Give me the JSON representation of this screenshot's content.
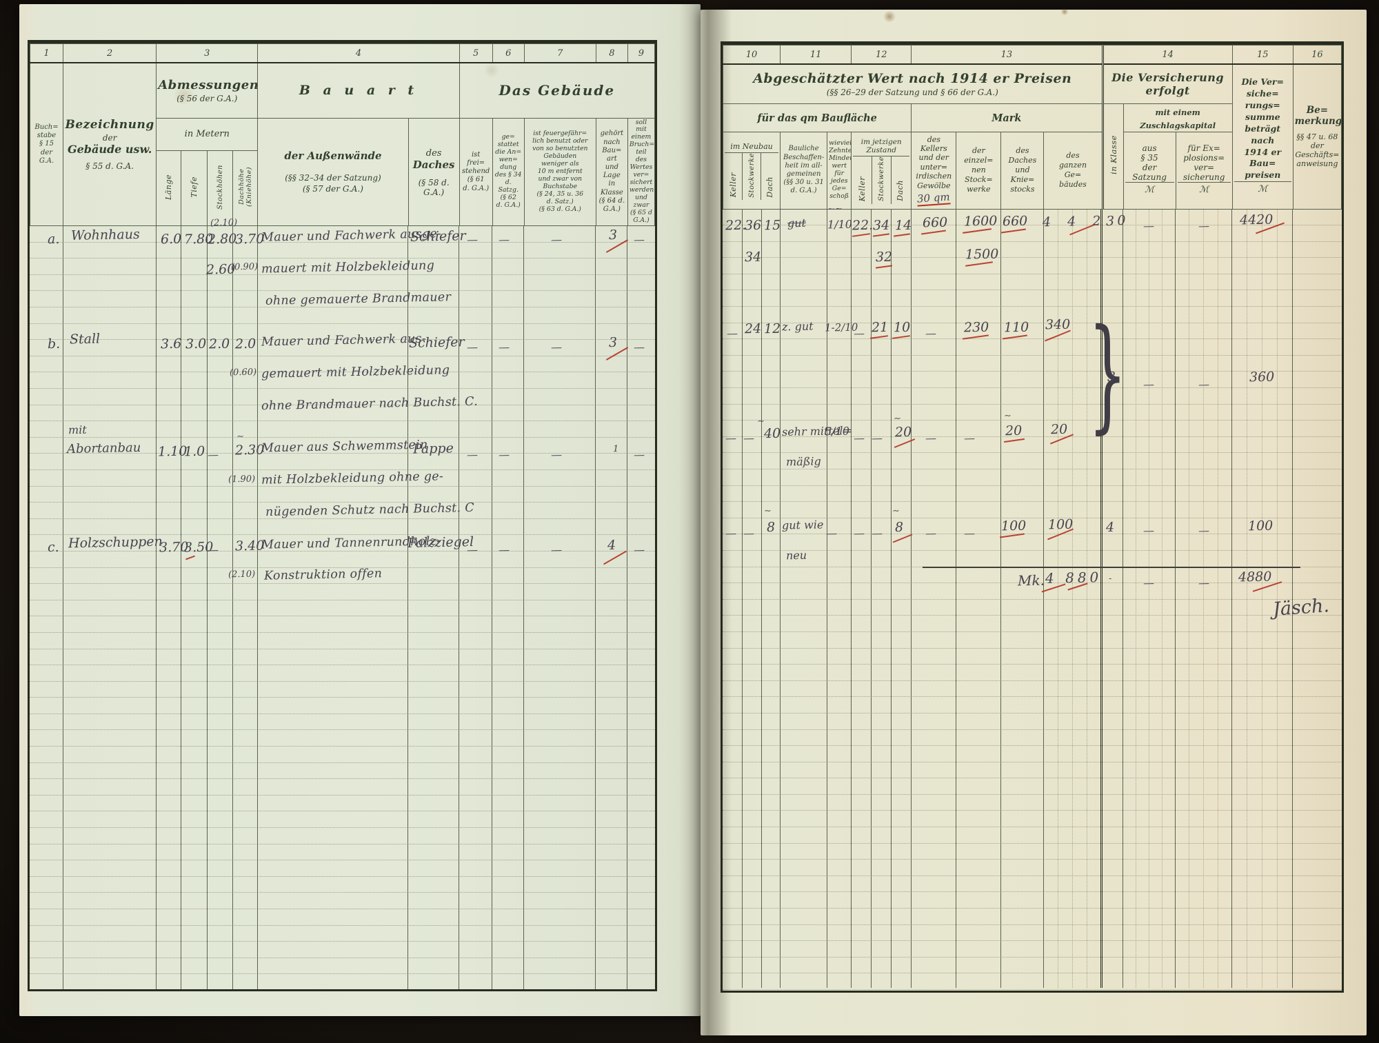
{
  "left": {
    "nums": [
      "1",
      "2",
      "3",
      "4",
      "5",
      "6",
      "7",
      "8",
      "9"
    ],
    "h": {
      "c1": "Buch=\nstabe\n§ 15\nder\nG.A.",
      "c2a": "Bezeichnung",
      "c2b": "der",
      "c2c": "Gebäude usw.",
      "c2d": "§ 55 d. G.A.",
      "abm": "Abmessungen",
      "abm_ref": "(§ 56 der G.A.)",
      "metern": "in Metern",
      "laenge": "Länge",
      "tiefe": "Tiefe",
      "stock": "Stockhöhen",
      "dach": "Dachhöhe\n(Kniehöhe)",
      "bauart": "B a u a r t",
      "gebaeude": "Das Gebäude",
      "wand_a": "der Außenwände",
      "wand_b": "(§§ 32–34 der Satzung)",
      "wand_c": "(§ 57 der G.A.)",
      "daches_a": "des",
      "daches_b": "Daches",
      "daches_c": "(§ 58 d. G.A.)",
      "c5": "ist\nfrei=\nstehend\n(§ 61\nd. G.A.)",
      "c6": "ge=\nstattet\ndie An=\nwen=\ndung\ndes § 34\nd. Satzg.\n(§ 62\nd. G.A.)",
      "c7": "ist feuergefähr=\nlich benutzt oder\nvon so benutzten\nGebäuden\nweniger als\n10 m entfernt\nund zwar von\nBuchstabe\n(§ 24, 35 u. 36\nd. Satz.)\n(§ 63 d. G.A.)",
      "c8": "gehört\nnach\nBau=\nart\nund\nLage\nin\nKlasse\n(§ 64 d.\nG.A.)",
      "c9": "soll mit\neinem\nBruch=\nteil des\nWertes\nver=\nsichert\nwerden\nund\nzwar\n(§ 65 d\nG.A.)"
    },
    "e": [
      "a.",
      "Wohnhaus",
      "6.0",
      "7.80",
      "(2.10)",
      "2.80",
      "2.60",
      "3.70",
      "(0.90)",
      "Mauer und Fachwerk ausge-",
      "mauert mit Holzbekleidung",
      "ohne gemauerte Brandmauer",
      "Schiefer",
      "—",
      "—",
      "—",
      "3",
      "—",
      "b.",
      "Stall",
      "3.6",
      "3.0",
      "2.0",
      "2.0",
      "(0.60)",
      "Mauer und Fachwerk aus-",
      "gemauert mit Holzbekleidung",
      "ohne Brandmauer nach Buchst. C.",
      "Schiefer",
      "—",
      "—",
      "—",
      "3",
      "—",
      "mit",
      "Abortanbau",
      "1.10",
      "1.0",
      "—",
      "2.30",
      "(1.90)",
      "Mauer aus Schwemmstein",
      "mit Holzbekleidung ohne ge-",
      "nügenden Schutz nach Buchst. C",
      "Pappe",
      "—",
      "—",
      "—",
      "1",
      "—",
      "c.",
      "Holzschuppen",
      "3.70",
      "3.50",
      "—",
      "3.40",
      "(2.10)",
      "Mauer und Tannenrundholz-",
      "Konstruktion offen",
      "Falzziegel",
      "—",
      "—",
      "—",
      "4",
      "—",
      "~"
    ]
  },
  "right": {
    "nums": [
      "10",
      "11",
      "12",
      "13",
      "14",
      "15",
      "16"
    ],
    "h": {
      "title": "Abgeschätzter Wert nach 1914 er Preisen",
      "title_ref": "(§§ 26–29 der Satzung und § 66 der G.A.)",
      "qm": "für das qm Baufläche",
      "mark": "Mark",
      "neubau": "im Neubau",
      "keller": "Keller",
      "stockwerke": "Stockwerke",
      "dach": "Dach",
      "bauliche": "Bauliche\nBeschaffen-\nheit im all-\ngemeinen\n(§§ 30 u. 31\nd. G.A.)",
      "zehntel": "wieviel\nZehntel\nMinder-\nwert\nfür\njedes\nGe=\nschoß",
      "zustand": "im jetzigen\nZustand",
      "m13a": "des\nKellers\nund der\nunter=\nirdischen\nGewölbe",
      "m13a_hand": "30 qm",
      "m13b": "der\neinzel=\nnen\nStock=\nwerke",
      "m13c": "des\nDaches\nund\nKnie=\nstocks",
      "m13d": "des\nganzen\nGe=\nbäudes",
      "klasse": "in Klasse",
      "vers": "Die Versicherung\nerfolgt",
      "zuschlag": "mit einem\nZuschlagskapital",
      "aus35": "aus\n§ 35\nder\nSatzung",
      "explo": "für Ex=\nplosions=\nver=\nsicherung",
      "m": "ℳ",
      "c15": "Die Ver=\nsiche=\nrungs=\nsumme\nbeträgt\nnach\n1914 er\nBau=\npreisen",
      "bem1": "Be=\nmerkungen",
      "bem2": "§§ 47 u. 68\nder\nGeschäfts=\nanweisung"
    },
    "e": [
      "22.",
      "36",
      "34",
      "15",
      "gut",
      "∼∼",
      "1/10",
      "22.",
      "34",
      "32",
      "14",
      "660",
      "1600",
      "1500",
      "660",
      "4 4 2 0",
      "3",
      "—",
      "—",
      "4420",
      "—",
      "24",
      "12",
      "z. gut",
      "1-2/10",
      "—",
      "21",
      "10",
      "—",
      "230",
      "110",
      "340",
      "}",
      "3",
      "—",
      "—",
      "360",
      "—",
      "—",
      "40",
      "sehr mittel=",
      "mäßig",
      "5/10",
      "—",
      "—",
      "20",
      "—",
      "—",
      "20",
      "20",
      "—",
      "—",
      "8",
      "gut wie",
      "neu",
      "—",
      "—",
      "—",
      "8",
      "—",
      "—",
      "100",
      "100",
      "4",
      "—",
      "—",
      "100",
      "Mk.",
      "4 880",
      "-",
      "—",
      "—",
      "4880",
      "Jäsch.",
      "~",
      "~",
      "~",
      "~",
      "~"
    ]
  }
}
